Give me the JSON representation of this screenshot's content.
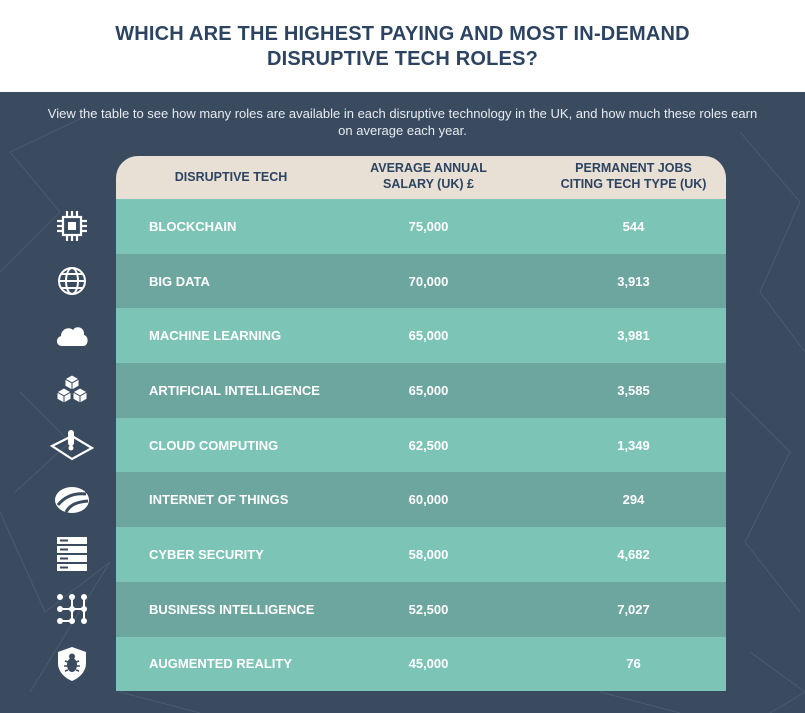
{
  "title_line1": "WHICH ARE THE HIGHEST PAYING AND MOST IN-DEMAND",
  "title_line2": "DISRUPTIVE TECH ROLES?",
  "subtitle": "View the table to see how many roles are available in each disruptive technology in the UK, and how much these roles earn on average each year.",
  "table": {
    "headers": {
      "tech": "DISRUPTIVE TECH",
      "salary_line1": "AVERAGE ANNUAL",
      "salary_line2": "SALARY (UK) £",
      "jobs_line1": "PERMANENT JOBS",
      "jobs_line2": "CITING TECH TYPE (UK)"
    },
    "rows": [
      {
        "tech": "BLOCKCHAIN",
        "salary": "75,000",
        "jobs": "544",
        "icon": "chip-icon"
      },
      {
        "tech": "BIG DATA",
        "salary": "70,000",
        "jobs": "3,913",
        "icon": "globe-icon"
      },
      {
        "tech": "MACHINE LEARNING",
        "salary": "65,000",
        "jobs": "3,981",
        "icon": "cloud-icon"
      },
      {
        "tech": "ARTIFICIAL INTELLIGENCE",
        "salary": "65,000",
        "jobs": "3,585",
        "icon": "cubes-icon"
      },
      {
        "tech": "CLOUD COMPUTING",
        "salary": "62,500",
        "jobs": "1,349",
        "icon": "touch-device-icon"
      },
      {
        "tech": "INTERNET OF THINGS",
        "salary": "60,000",
        "jobs": "294",
        "icon": "network-road-icon"
      },
      {
        "tech": "CYBER SECURITY",
        "salary": "58,000",
        "jobs": "4,682",
        "icon": "server-rack-icon"
      },
      {
        "tech": "BUSINESS INTELLIGENCE",
        "salary": "52,500",
        "jobs": "7,027",
        "icon": "node-grid-icon"
      },
      {
        "tech": "AUGMENTED REALITY",
        "salary": "45,000",
        "jobs": "76",
        "icon": "bug-shield-icon"
      }
    ]
  },
  "colors": {
    "title": "#2c4361",
    "panel": "#3a4a5f",
    "header_row": "#e8e0d5",
    "row_light": "#7cc5b6",
    "row_dark": "#6ca69f"
  }
}
